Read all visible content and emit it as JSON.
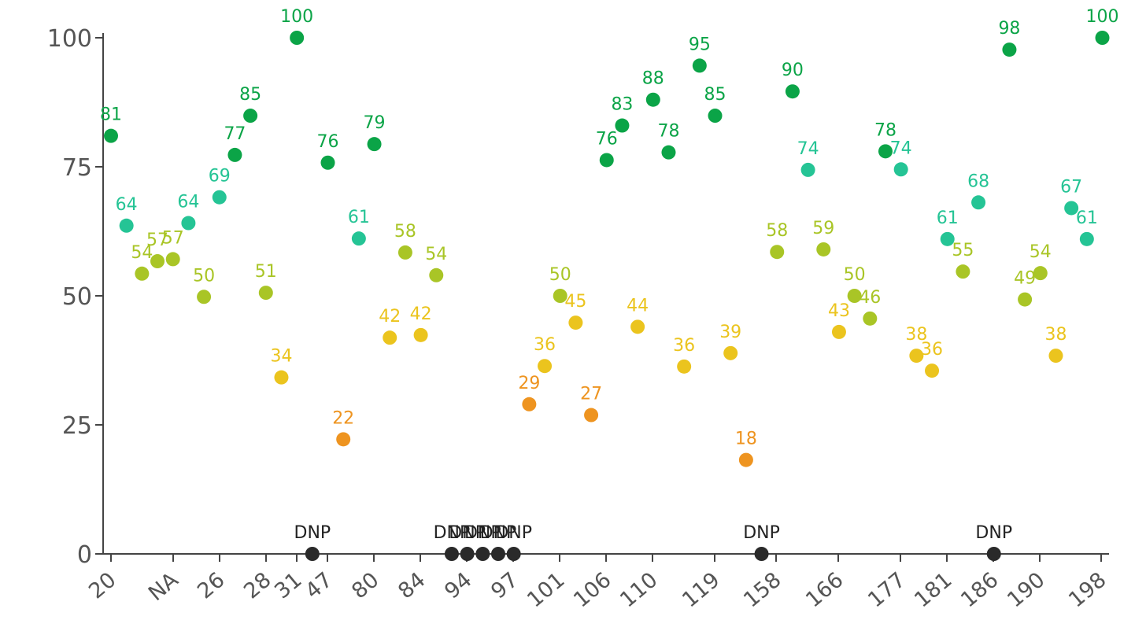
{
  "chart_data": {
    "type": "scatter",
    "title": "",
    "xlabel": "",
    "ylabel": "",
    "ylim": [
      0,
      100
    ],
    "yticks": [
      0,
      25,
      50,
      75,
      100
    ],
    "xticks": [
      "20",
      "NA",
      "26",
      "28",
      "31",
      "47",
      "80",
      "84",
      "94",
      "97",
      "101",
      "106",
      "110",
      "119",
      "158",
      "166",
      "177",
      "181",
      "186",
      "190",
      "198"
    ],
    "dnp_label": "DNP",
    "colors": {
      "dnp": "#2a2a2a",
      "orange": "#ee9420",
      "yellow": "#ebc41e",
      "olive": "#a9c526",
      "teal": "#25c495",
      "green": "#0ba447"
    },
    "points": [
      {
        "value": 81,
        "label": "81"
      },
      {
        "value": 63.6,
        "label": "64"
      },
      {
        "value": 54.3,
        "label": "54"
      },
      {
        "value": 56.7,
        "label": "57"
      },
      {
        "value": 57.1,
        "label": "57"
      },
      {
        "value": 64.1,
        "label": "64"
      },
      {
        "value": 49.8,
        "label": "50"
      },
      {
        "value": 69.1,
        "label": "69"
      },
      {
        "value": 77.3,
        "label": "77"
      },
      {
        "value": 84.9,
        "label": "85"
      },
      {
        "value": 50.6,
        "label": "51"
      },
      {
        "value": 34.2,
        "label": "34"
      },
      {
        "value": 100,
        "label": "100"
      },
      {
        "value": null,
        "label": "DNP"
      },
      {
        "value": 75.8,
        "label": "76"
      },
      {
        "value": 22.2,
        "label": "22"
      },
      {
        "value": 61.1,
        "label": "61"
      },
      {
        "value": 79.4,
        "label": "79"
      },
      {
        "value": 41.9,
        "label": "42"
      },
      {
        "value": 58.4,
        "label": "58"
      },
      {
        "value": 42.4,
        "label": "42"
      },
      {
        "value": 54,
        "label": "54"
      },
      {
        "value": null,
        "label": "DNP"
      },
      {
        "value": null,
        "label": "DNP"
      },
      {
        "value": null,
        "label": "DNP"
      },
      {
        "value": null,
        "label": "DNP"
      },
      {
        "value": null,
        "label": "DNP"
      },
      {
        "value": 29,
        "label": "29"
      },
      {
        "value": 36.4,
        "label": "36"
      },
      {
        "value": 50,
        "label": "50"
      },
      {
        "value": 44.8,
        "label": "45"
      },
      {
        "value": 26.9,
        "label": "27"
      },
      {
        "value": 76.3,
        "label": "76"
      },
      {
        "value": 83,
        "label": "83"
      },
      {
        "value": 44,
        "label": "44"
      },
      {
        "value": 88,
        "label": "88"
      },
      {
        "value": 77.8,
        "label": "78"
      },
      {
        "value": 36.3,
        "label": "36"
      },
      {
        "value": 94.6,
        "label": "95"
      },
      {
        "value": 84.9,
        "label": "85"
      },
      {
        "value": 38.9,
        "label": "39"
      },
      {
        "value": 18.2,
        "label": "18"
      },
      {
        "value": null,
        "label": "DNP"
      },
      {
        "value": 58.5,
        "label": "58"
      },
      {
        "value": 89.6,
        "label": "90"
      },
      {
        "value": 74.4,
        "label": "74"
      },
      {
        "value": 59,
        "label": "59"
      },
      {
        "value": 43,
        "label": "43"
      },
      {
        "value": 50,
        "label": "50"
      },
      {
        "value": 45.6,
        "label": "46"
      },
      {
        "value": 78,
        "label": "78"
      },
      {
        "value": 74.5,
        "label": "74"
      },
      {
        "value": 38.4,
        "label": "38"
      },
      {
        "value": 35.5,
        "label": "36"
      },
      {
        "value": 61,
        "label": "61"
      },
      {
        "value": 54.7,
        "label": "55"
      },
      {
        "value": 68.1,
        "label": "68"
      },
      {
        "value": null,
        "label": "DNP"
      },
      {
        "value": 97.7,
        "label": "98"
      },
      {
        "value": 49.3,
        "label": "49"
      },
      {
        "value": 54.4,
        "label": "54"
      },
      {
        "value": 38.4,
        "label": "38"
      },
      {
        "value": 67,
        "label": "67"
      },
      {
        "value": 61,
        "label": "61"
      },
      {
        "value": 100,
        "label": "100"
      }
    ]
  }
}
